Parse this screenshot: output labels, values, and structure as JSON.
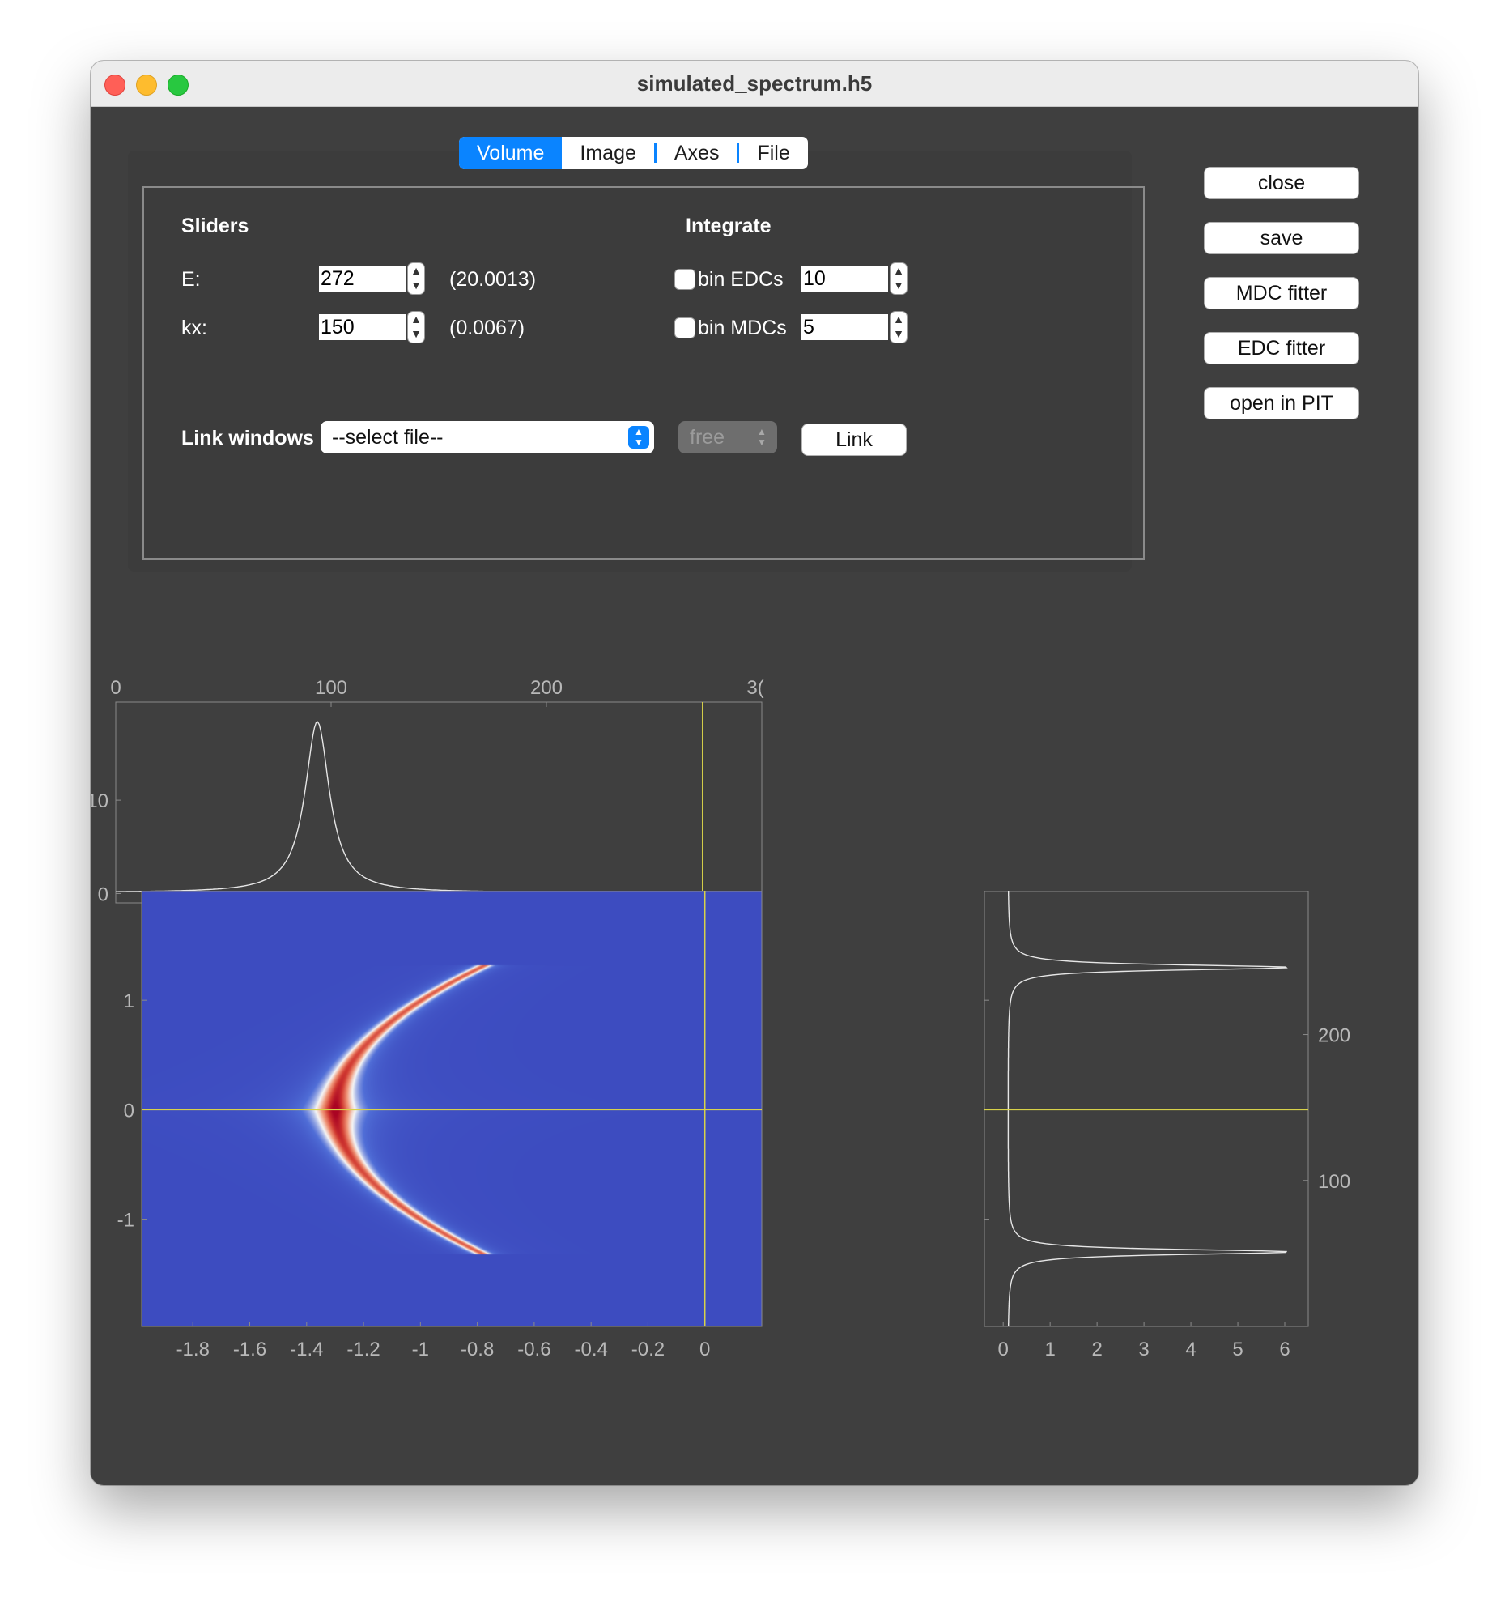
{
  "window": {
    "title": "simulated_spectrum.h5"
  },
  "tabs": [
    {
      "label": "Volume",
      "active": true
    },
    {
      "label": "Image",
      "active": false
    },
    {
      "label": "Axes",
      "active": false
    },
    {
      "label": "File",
      "active": false
    }
  ],
  "sliders": {
    "heading": "Sliders",
    "e_label": "E:",
    "e_value": "272",
    "e_readout": "(20.0013)",
    "kx_label": "kx:",
    "kx_value": "150",
    "kx_readout": "(0.0067)"
  },
  "integrate": {
    "heading": "Integrate",
    "bin_edcs_label": "bin EDCs",
    "bin_edcs_checked": false,
    "bin_edcs_value": "10",
    "bin_mdcs_label": "bin MDCs",
    "bin_mdcs_checked": false,
    "bin_mdcs_value": "5"
  },
  "link": {
    "label": "Link windows",
    "file_select": "--select file--",
    "mode_select": "free",
    "button": "Link"
  },
  "side_buttons": {
    "close": "close",
    "save": "save",
    "mdc_fitter": "MDC fitter",
    "edc_fitter": "EDC fitter",
    "open_in_pit": "open in PIT"
  },
  "colors": {
    "cursor": "#d8d24a",
    "cmap_low": "#3d4dbf",
    "cmap_high": "#b40426",
    "curve": "#e6e6e6"
  },
  "chart_data": [
    {
      "type": "line",
      "id": "mdc",
      "x_ticks_bottom": [
        -1.8,
        -1.6,
        -1.4,
        -1.2,
        -1,
        -0.8,
        -0.6,
        -0.4,
        -0.2,
        0
      ],
      "x_ticks_top": [
        "0",
        "100",
        "200",
        "3("
      ],
      "y_ticks": [
        0,
        10
      ],
      "xlim": [
        -1.98,
        0.2
      ],
      "ylim": [
        -1,
        20.5
      ],
      "peak": {
        "x": -1.3,
        "height": 18.3,
        "width": 0.05,
        "baseline": 0.1
      },
      "cursor_x": 0
    },
    {
      "type": "heatmap",
      "id": "image",
      "x_ticks": [
        -1.8,
        -1.6,
        -1.4,
        -1.2,
        -1,
        -0.8,
        -0.6,
        -0.4,
        -0.2,
        0
      ],
      "y_ticks": [
        1,
        0,
        -1
      ],
      "xlim": [
        -1.98,
        0.2
      ],
      "ylim": [
        -1.98,
        2.0
      ],
      "dispersion": "x = -1.3 + 0.3*y^2, |y| <= 1.3",
      "cursor": {
        "x": 0,
        "y": 0
      }
    },
    {
      "type": "line",
      "id": "edc",
      "x_ticks": [
        0,
        1,
        2,
        3,
        4,
        5,
        6
      ],
      "y_ticks_left": [
        1,
        0,
        -1
      ],
      "y_ticks_right": [
        "200",
        "100"
      ],
      "xlim": [
        -0.4,
        6.5
      ],
      "ylim": [
        -1.98,
        2.0
      ],
      "peaks": [
        {
          "y": 1.3,
          "height": 6.0
        },
        {
          "y": -1.3,
          "height": 6.0
        }
      ],
      "cursor_y": 0
    }
  ]
}
